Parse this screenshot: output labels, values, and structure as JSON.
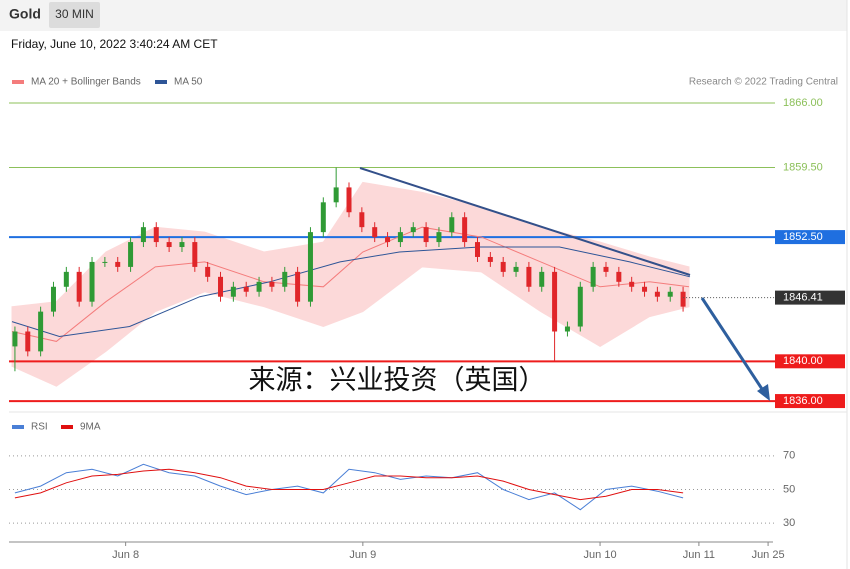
{
  "header": {
    "symbol": "Gold",
    "interval": "30 MIN",
    "timestamp": "Friday, June 10, 2022 3:40:24 AM CET"
  },
  "chart_data": [
    {
      "type": "candlestick",
      "annotations": [
        "Research © 2022 Trading Central",
        "来源：兴业投资（英国）"
      ],
      "up_color": "#2f9a35",
      "down_color": "#e0262a",
      "xlim": [
        -11.8,
        65.7
      ],
      "ylim": [
        1835,
        1867
      ],
      "x": [
        -11.2,
        -9.9,
        -8.6,
        -7.3,
        -6,
        -4.7,
        -3.4,
        -2.1,
        -0.8,
        0.5,
        1.8,
        3.1,
        4.4,
        5.7,
        7,
        8.3,
        9.6,
        10.9,
        12.2,
        13.5,
        14.8,
        16.1,
        17.4,
        18.7,
        20,
        21.3,
        22.6,
        23.9,
        25.2,
        26.5,
        27.8,
        29.1,
        30.4,
        31.7,
        33,
        34.3,
        35.6,
        36.9,
        38.2,
        39.5,
        40.8,
        42.1,
        43.4,
        44.7,
        46,
        47.3,
        48.6,
        49.9,
        51.2,
        52.5,
        53.8,
        55.1,
        56.4
      ],
      "open": [
        1841.5,
        1843,
        1841,
        1845,
        1847.5,
        1849,
        1846,
        1850,
        1850,
        1849.5,
        1852,
        1853.5,
        1852,
        1851.5,
        1852,
        1849.5,
        1848.5,
        1846.5,
        1847.5,
        1847,
        1848,
        1847.5,
        1849,
        1846,
        1853,
        1856,
        1857.5,
        1855,
        1853.5,
        1852.5,
        1852,
        1853,
        1853.5,
        1852,
        1853,
        1854.5,
        1852,
        1850.5,
        1850,
        1849,
        1849.5,
        1847.5,
        1849,
        1843,
        1843.5,
        1847.5,
        1849.5,
        1849,
        1848,
        1847.5,
        1847,
        1846.5,
        1847
      ],
      "high": [
        1843.5,
        1843.5,
        1845.5,
        1848,
        1849.5,
        1849.5,
        1850.5,
        1850.5,
        1850.5,
        1852.5,
        1854,
        1854,
        1852.5,
        1852.5,
        1852.5,
        1850,
        1849,
        1848,
        1848,
        1848.5,
        1848.5,
        1849.5,
        1849.5,
        1853.5,
        1856.5,
        1859.5,
        1858,
        1855.5,
        1854,
        1853,
        1853.5,
        1854,
        1854,
        1853.5,
        1855,
        1855,
        1852.5,
        1851,
        1850.5,
        1850,
        1850,
        1849.5,
        1849.5,
        1844,
        1848,
        1850,
        1850,
        1849.5,
        1848.5,
        1848,
        1847.5,
        1847.5,
        1847.5
      ],
      "low": [
        1839,
        1840.5,
        1840.5,
        1844.5,
        1847,
        1845.5,
        1845.5,
        1849.5,
        1849,
        1849,
        1851.5,
        1851.5,
        1851,
        1851,
        1849,
        1848,
        1846,
        1846,
        1846.5,
        1846.5,
        1847,
        1847,
        1845.5,
        1845.5,
        1852.5,
        1855.5,
        1854.5,
        1853,
        1852,
        1851.5,
        1851.5,
        1852.5,
        1851.5,
        1851.5,
        1852.5,
        1851.5,
        1850,
        1849.5,
        1848.5,
        1848.5,
        1847,
        1847,
        1840,
        1842.5,
        1843,
        1847,
        1848.5,
        1847.5,
        1847,
        1846.5,
        1846,
        1846,
        1845
      ],
      "close": [
        1843,
        1841,
        1845,
        1847.5,
        1849,
        1846,
        1850,
        1850,
        1849.5,
        1852,
        1853.5,
        1852,
        1851.5,
        1852,
        1849.5,
        1848.5,
        1846.5,
        1847.5,
        1847,
        1848,
        1847.5,
        1849,
        1846,
        1853,
        1856,
        1857.5,
        1855,
        1853.5,
        1852.5,
        1852,
        1853,
        1853.5,
        1852,
        1853,
        1854.5,
        1852,
        1850.5,
        1850,
        1849,
        1849.5,
        1847.5,
        1849,
        1843,
        1843.5,
        1847.5,
        1849.5,
        1849,
        1848,
        1847.5,
        1847,
        1846.5,
        1847,
        1845.5
      ],
      "series": [
        {
          "name": "MA 20 + Bollinger Bands",
          "color": "#f47c7c",
          "band_color": "#fcd9d9",
          "x": [
            -11.5,
            -7,
            -2,
            3,
            8,
            14,
            20,
            24,
            30,
            36,
            42,
            48,
            53,
            57
          ],
          "values": [
            1843,
            1842,
            1846,
            1849.5,
            1850,
            1848,
            1847.5,
            1851,
            1853.5,
            1852.5,
            1850,
            1847.5,
            1848,
            1847.5
          ],
          "upper": [
            1845.5,
            1846,
            1851,
            1853.5,
            1853,
            1851,
            1852,
            1858,
            1857,
            1855.5,
            1853.5,
            1852,
            1850.5,
            1849.5
          ],
          "lower": [
            1839.5,
            1837.5,
            1841,
            1845,
            1847,
            1845.5,
            1843.5,
            1845,
            1849.5,
            1849,
            1845,
            1841.5,
            1844.5,
            1845.5
          ]
        },
        {
          "name": "MA 50",
          "color": "#2e5597",
          "x": [
            -11.5,
            -6.7,
            0.4,
            7.5,
            14.6,
            21.7,
            27.7,
            35.8,
            43.9,
            51,
            57.1
          ],
          "values": [
            1844,
            1842.5,
            1843.5,
            1846.5,
            1848,
            1850,
            1851,
            1851.5,
            1851.5,
            1850,
            1848.5
          ]
        }
      ],
      "levels": [
        {
          "value": 1866,
          "label": "1866.00",
          "color": "#8cc05a",
          "badge": false
        },
        {
          "value": 1859.5,
          "label": "1859.50",
          "color": "#8cc05a",
          "badge": false
        },
        {
          "value": 1852.5,
          "label": "1852.50",
          "color": "#1f6fe0",
          "badge": true
        },
        {
          "value": 1840,
          "label": "1840.00",
          "color": "#ee1c1c",
          "badge": true
        },
        {
          "value": 1836,
          "label": "1836.00",
          "color": "#ee1c1c",
          "badge": true
        }
      ],
      "last_price": {
        "value": 1846.41,
        "label": "1846.41",
        "color": "#333333"
      }
    },
    {
      "type": "line",
      "xlim": [
        -11.8,
        65.7
      ],
      "ylim": [
        20,
        80
      ],
      "yticks": [
        70,
        50,
        30
      ],
      "grid": true,
      "xticks": [
        {
          "value": 0,
          "label": "Jun 8"
        },
        {
          "value": 24,
          "label": "Jun 9"
        },
        {
          "value": 48,
          "label": "Jun 10"
        },
        {
          "value": 58,
          "label": "Jun 11"
        },
        {
          "value": 65,
          "label": "Jun 25"
        }
      ],
      "x": [
        -11.2,
        -8.6,
        -6,
        -3.4,
        -0.8,
        1.8,
        4.4,
        7,
        9.6,
        12.2,
        14.8,
        17.4,
        20,
        22.6,
        25.2,
        27.8,
        30.4,
        33,
        35.6,
        38.2,
        40.8,
        43.4,
        46,
        48.6,
        51.2,
        53.8,
        56.4
      ],
      "series": [
        {
          "name": "RSI",
          "color": "#4a7fd6",
          "values": [
            48,
            52,
            60,
            62,
            58,
            65,
            60,
            58,
            52,
            47,
            50,
            52,
            48,
            62,
            60,
            56,
            58,
            57,
            60,
            50,
            44,
            48,
            38,
            50,
            52,
            49,
            45
          ]
        },
        {
          "name": "9MA",
          "color": "#e01010",
          "values": [
            45,
            48,
            54,
            58,
            59,
            61,
            62,
            60,
            57,
            52,
            50,
            50,
            50,
            54,
            58,
            58,
            57,
            57,
            58,
            55,
            50,
            47,
            44,
            46,
            50,
            50,
            48
          ]
        }
      ]
    }
  ]
}
